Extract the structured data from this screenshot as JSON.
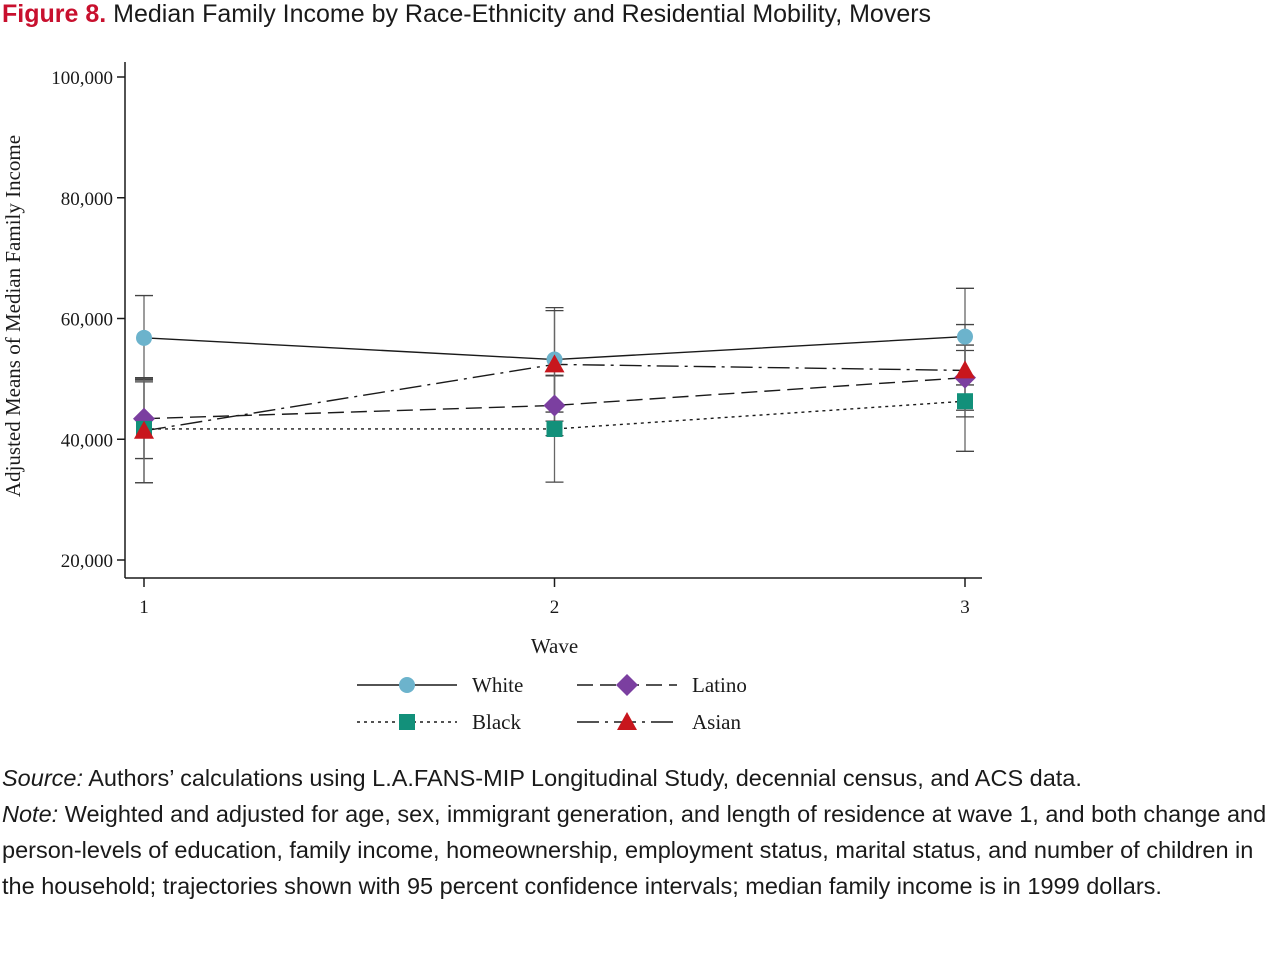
{
  "figure": {
    "label": "Figure 8.",
    "title": "Median Family Income by Race-Ethnicity and Residential Mobility, Movers"
  },
  "chart_data": {
    "type": "line",
    "xlabel": "Wave",
    "ylabel": "Adjusted Means of Median Family Income",
    "x": [
      1,
      2,
      3
    ],
    "x_tick_labels": [
      "1",
      "2",
      "3"
    ],
    "ylim": [
      20000,
      100000
    ],
    "y_ticks": [
      20000,
      40000,
      60000,
      80000,
      100000
    ],
    "y_tick_labels": [
      "20,000",
      "40,000",
      "60,000",
      "80,000",
      "100,000"
    ],
    "grid": false,
    "legend_position": "bottom",
    "series": [
      {
        "name": "White",
        "marker": "circle",
        "line": "solid",
        "color": "#6cb3cc",
        "values": [
          56800,
          53200,
          57000
        ],
        "ci_low": [
          49800,
          44500,
          49000
        ],
        "ci_high": [
          63800,
          61800,
          65000
        ]
      },
      {
        "name": "Latino",
        "marker": "diamond",
        "line": "dashed",
        "color": "#7b3fa0",
        "values": [
          43400,
          45600,
          50200
        ],
        "ci_low": [
          36800,
          40600,
          44800
        ],
        "ci_high": [
          50200,
          50600,
          55600
        ]
      },
      {
        "name": "Black",
        "marker": "square",
        "line": "dotted",
        "color": "#12907a",
        "values": [
          41700,
          41700,
          46300
        ],
        "ci_low": [
          32800,
          32900,
          38000
        ],
        "ci_high": [
          49500,
          50500,
          54700
        ]
      },
      {
        "name": "Asian",
        "marker": "triangle",
        "line": "dashdot",
        "color": "#c8161d",
        "values": [
          41400,
          52400,
          51400
        ],
        "ci_low": [
          32800,
          43000,
          43700
        ],
        "ci_high": [
          50000,
          61300,
          59000
        ]
      }
    ]
  },
  "notes": {
    "source_label": "Source:",
    "source_text": " Authors’ calculations using L.A.FANS-MIP Longitudinal Study, decennial census, and ACS data.",
    "note_label": "Note:",
    "note_text": " Weighted and adjusted for age, sex, immigrant generation, and length of residence at wave 1, and both change and person-levels of education, family income, homeownership, employment status, marital status, and number of children in the household; trajectories shown with 95 percent confidence intervals; median family income is in 1999 dollars."
  }
}
